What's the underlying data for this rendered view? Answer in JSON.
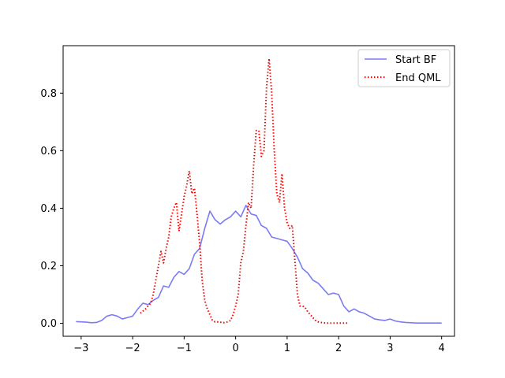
{
  "chart_data": {
    "type": "line",
    "title": "",
    "xlabel": "",
    "ylabel": "",
    "xlim": [
      -3.35,
      4.25
    ],
    "ylim": [
      -0.045,
      0.965
    ],
    "xticks": [
      -3,
      -2,
      -1,
      0,
      1,
      2,
      3,
      4
    ],
    "xtick_labels": [
      "−3",
      "−2",
      "−1",
      "0",
      "1",
      "2",
      "3",
      "4"
    ],
    "yticks": [
      0.0,
      0.2,
      0.4,
      0.6,
      0.8
    ],
    "ytick_labels": [
      "0.0",
      "0.2",
      "0.4",
      "0.6",
      "0.8"
    ],
    "grid": false,
    "legend_position": "top-right",
    "series": [
      {
        "name": "Start BF",
        "color": "#7b7bf5",
        "style": "solid",
        "x": [
          -3.1,
          -3.0,
          -2.9,
          -2.8,
          -2.7,
          -2.6,
          -2.5,
          -2.4,
          -2.3,
          -2.2,
          -2.1,
          -2.0,
          -1.9,
          -1.8,
          -1.7,
          -1.6,
          -1.5,
          -1.4,
          -1.3,
          -1.2,
          -1.1,
          -1.0,
          -0.9,
          -0.8,
          -0.7,
          -0.6,
          -0.5,
          -0.4,
          -0.3,
          -0.2,
          -0.1,
          0.0,
          0.1,
          0.2,
          0.3,
          0.4,
          0.5,
          0.6,
          0.7,
          0.8,
          0.9,
          1.0,
          1.1,
          1.2,
          1.3,
          1.4,
          1.5,
          1.6,
          1.7,
          1.8,
          1.9,
          2.0,
          2.1,
          2.2,
          2.3,
          2.4,
          2.5,
          2.6,
          2.7,
          2.8,
          2.9,
          3.0,
          3.1,
          3.2,
          3.3,
          3.4,
          3.5,
          3.6,
          3.7,
          3.8,
          3.9,
          4.0
        ],
        "values": [
          0.006,
          0.005,
          0.004,
          0.002,
          0.003,
          0.01,
          0.025,
          0.03,
          0.025,
          0.015,
          0.02,
          0.025,
          0.05,
          0.07,
          0.065,
          0.08,
          0.09,
          0.13,
          0.125,
          0.16,
          0.18,
          0.17,
          0.19,
          0.24,
          0.26,
          0.33,
          0.39,
          0.36,
          0.345,
          0.36,
          0.37,
          0.39,
          0.37,
          0.41,
          0.38,
          0.375,
          0.34,
          0.33,
          0.3,
          0.295,
          0.29,
          0.285,
          0.26,
          0.23,
          0.19,
          0.175,
          0.15,
          0.14,
          0.12,
          0.1,
          0.105,
          0.1,
          0.06,
          0.04,
          0.05,
          0.04,
          0.035,
          0.025,
          0.015,
          0.012,
          0.01,
          0.015,
          0.008,
          0.005,
          0.003,
          0.002,
          0.001,
          0.001,
          0.001,
          0.001,
          0.001,
          0.001
        ]
      },
      {
        "name": "End QML",
        "color": "#ff0000",
        "style": "dotted",
        "x": [
          -1.85,
          -1.75,
          -1.65,
          -1.6,
          -1.55,
          -1.5,
          -1.45,
          -1.4,
          -1.35,
          -1.3,
          -1.25,
          -1.2,
          -1.15,
          -1.1,
          -1.05,
          -1.0,
          -0.95,
          -0.9,
          -0.85,
          -0.8,
          -0.75,
          -0.7,
          -0.65,
          -0.6,
          -0.55,
          -0.5,
          -0.45,
          -0.4,
          -0.35,
          -0.3,
          -0.25,
          -0.2,
          -0.15,
          -0.1,
          -0.05,
          0.0,
          0.05,
          0.1,
          0.15,
          0.2,
          0.25,
          0.3,
          0.35,
          0.4,
          0.45,
          0.5,
          0.55,
          0.6,
          0.65,
          0.7,
          0.75,
          0.8,
          0.85,
          0.9,
          0.95,
          1.0,
          1.05,
          1.1,
          1.15,
          1.2,
          1.25,
          1.3,
          1.35,
          1.4,
          1.45,
          1.5,
          1.55,
          1.6,
          1.65,
          1.7,
          1.75,
          1.8,
          1.85,
          1.9,
          1.95,
          2.0,
          2.1,
          2.2
        ],
        "values": [
          0.035,
          0.05,
          0.07,
          0.1,
          0.15,
          0.2,
          0.25,
          0.21,
          0.26,
          0.3,
          0.37,
          0.4,
          0.42,
          0.32,
          0.38,
          0.44,
          0.48,
          0.53,
          0.45,
          0.47,
          0.38,
          0.28,
          0.15,
          0.08,
          0.05,
          0.03,
          0.01,
          0.005,
          0.005,
          0.004,
          0.002,
          0.003,
          0.005,
          0.01,
          0.03,
          0.06,
          0.1,
          0.21,
          0.25,
          0.34,
          0.42,
          0.4,
          0.55,
          0.67,
          0.67,
          0.58,
          0.6,
          0.82,
          0.92,
          0.8,
          0.6,
          0.45,
          0.42,
          0.52,
          0.4,
          0.35,
          0.33,
          0.34,
          0.22,
          0.1,
          0.06,
          0.06,
          0.055,
          0.04,
          0.03,
          0.02,
          0.01,
          0.005,
          0.003,
          0.002,
          0.001,
          0.001,
          0.001,
          0.001,
          0.001,
          0.001,
          0.001,
          0.001
        ]
      }
    ]
  }
}
